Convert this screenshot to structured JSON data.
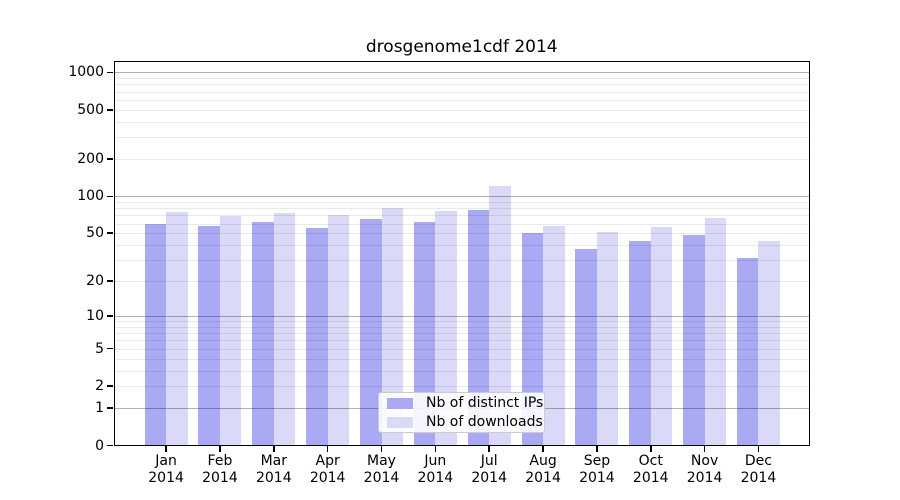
{
  "page": {
    "background": "#ffffff"
  },
  "chart_data": {
    "type": "bar",
    "title": "drosgenome1cdf 2014",
    "categories": [
      "Jan",
      "Feb",
      "Mar",
      "Apr",
      "May",
      "Jun",
      "Jul",
      "Aug",
      "Sep",
      "Oct",
      "Nov",
      "Dec"
    ],
    "category_year_line": "2014",
    "series": [
      {
        "name": "Nb of distinct IPs",
        "color": "#a9a9f4",
        "values": [
          60,
          57,
          62,
          55,
          65,
          62,
          77,
          50,
          37,
          43,
          48,
          31
        ]
      },
      {
        "name": "Nb of downloads",
        "color": "#dadaf8",
        "values": [
          75,
          69,
          73,
          71,
          80,
          76,
          122,
          57,
          51,
          56,
          66,
          43
        ]
      }
    ],
    "yscale": "log1p",
    "ylim": [
      0,
      1250
    ],
    "ytick_values": [
      0,
      1,
      2,
      5,
      10,
      20,
      50,
      100,
      200,
      500,
      1000
    ],
    "ytick_labels": [
      "0",
      "1",
      "2",
      "5",
      "10",
      "20",
      "50",
      "100",
      "200",
      "500",
      "1000"
    ],
    "grid": true,
    "grid_major_at": [
      1,
      10,
      100,
      1000
    ],
    "grid_minor_at": [
      2,
      3,
      4,
      5,
      6,
      7,
      8,
      9,
      20,
      30,
      40,
      50,
      60,
      70,
      80,
      90,
      200,
      300,
      400,
      500,
      600,
      700,
      800,
      900
    ],
    "legend_position": "lower-center-inside",
    "xlabel": "",
    "ylabel": ""
  }
}
